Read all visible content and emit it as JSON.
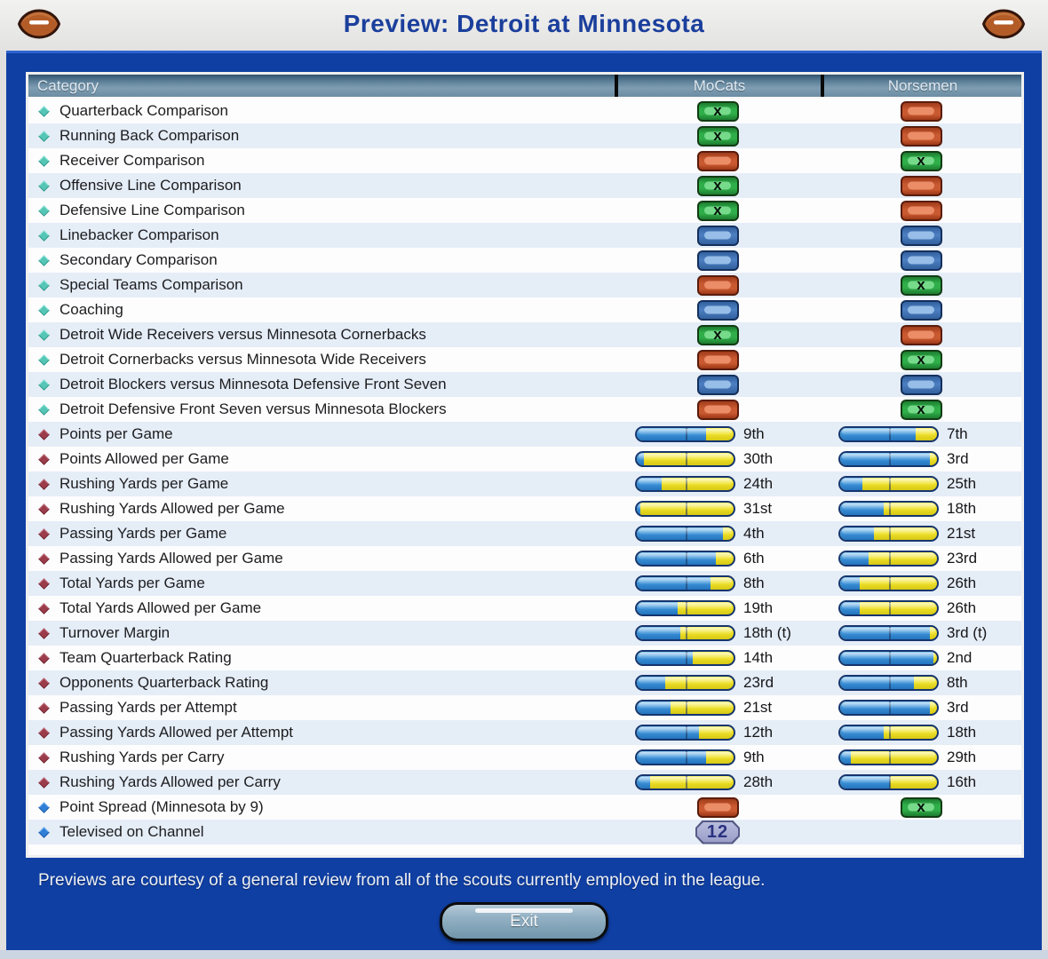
{
  "header": {
    "title": "Preview: Detroit at Minnesota"
  },
  "table": {
    "columns": [
      "Category",
      "MoCats",
      "Norsemen"
    ],
    "rows": [
      {
        "type": "comparison",
        "bullet": "teal",
        "label": "Quarterback Comparison",
        "mocats": "win",
        "norsemen": "loss"
      },
      {
        "type": "comparison",
        "bullet": "teal",
        "label": "Running Back Comparison",
        "mocats": "win",
        "norsemen": "loss"
      },
      {
        "type": "comparison",
        "bullet": "teal",
        "label": "Receiver Comparison",
        "mocats": "loss",
        "norsemen": "win"
      },
      {
        "type": "comparison",
        "bullet": "teal",
        "label": "Offensive Line Comparison",
        "mocats": "win",
        "norsemen": "loss"
      },
      {
        "type": "comparison",
        "bullet": "teal",
        "label": "Defensive Line Comparison",
        "mocats": "win",
        "norsemen": "loss"
      },
      {
        "type": "comparison",
        "bullet": "teal",
        "label": "Linebacker Comparison",
        "mocats": "even",
        "norsemen": "even"
      },
      {
        "type": "comparison",
        "bullet": "teal",
        "label": "Secondary Comparison",
        "mocats": "even",
        "norsemen": "even"
      },
      {
        "type": "comparison",
        "bullet": "teal",
        "label": "Special Teams Comparison",
        "mocats": "loss",
        "norsemen": "win"
      },
      {
        "type": "comparison",
        "bullet": "teal",
        "label": "Coaching",
        "mocats": "even",
        "norsemen": "even"
      },
      {
        "type": "comparison",
        "bullet": "teal",
        "label": "Detroit Wide Receivers versus Minnesota Cornerbacks",
        "mocats": "win",
        "norsemen": "loss"
      },
      {
        "type": "comparison",
        "bullet": "teal",
        "label": "Detroit Cornerbacks versus Minnesota Wide Receivers",
        "mocats": "loss",
        "norsemen": "win"
      },
      {
        "type": "comparison",
        "bullet": "teal",
        "label": "Detroit Blockers versus Minnesota Defensive Front Seven",
        "mocats": "even",
        "norsemen": "even"
      },
      {
        "type": "comparison",
        "bullet": "teal",
        "label": "Detroit Defensive Front Seven versus Minnesota Blockers",
        "mocats": "loss",
        "norsemen": "win"
      },
      {
        "type": "stat",
        "bullet": "maroon",
        "label": "Points per Game",
        "mocats": {
          "rank": "9th",
          "fill": 72
        },
        "norsemen": {
          "rank": "7th",
          "fill": 78
        }
      },
      {
        "type": "stat",
        "bullet": "maroon",
        "label": "Points Allowed per Game",
        "mocats": {
          "rank": "30th",
          "fill": 7
        },
        "norsemen": {
          "rank": "3rd",
          "fill": 93
        }
      },
      {
        "type": "stat",
        "bullet": "maroon",
        "label": "Rushing Yards per Game",
        "mocats": {
          "rank": "24th",
          "fill": 26
        },
        "norsemen": {
          "rank": "25th",
          "fill": 23
        }
      },
      {
        "type": "stat",
        "bullet": "maroon",
        "label": "Rushing Yards Allowed per Game",
        "mocats": {
          "rank": "31st",
          "fill": 4
        },
        "norsemen": {
          "rank": "18th",
          "fill": 45
        }
      },
      {
        "type": "stat",
        "bullet": "maroon",
        "label": "Passing Yards per Game",
        "mocats": {
          "rank": "4th",
          "fill": 89
        },
        "norsemen": {
          "rank": "21st",
          "fill": 35
        }
      },
      {
        "type": "stat",
        "bullet": "maroon",
        "label": "Passing Yards Allowed per Game",
        "mocats": {
          "rank": "6th",
          "fill": 82
        },
        "norsemen": {
          "rank": "23rd",
          "fill": 29
        }
      },
      {
        "type": "stat",
        "bullet": "maroon",
        "label": "Total Yards per Game",
        "mocats": {
          "rank": "8th",
          "fill": 76
        },
        "norsemen": {
          "rank": "26th",
          "fill": 20
        }
      },
      {
        "type": "stat",
        "bullet": "maroon",
        "label": "Total Yards Allowed per Game",
        "mocats": {
          "rank": "19th",
          "fill": 42
        },
        "norsemen": {
          "rank": "26th",
          "fill": 20
        }
      },
      {
        "type": "stat",
        "bullet": "maroon",
        "label": "Turnover Margin",
        "mocats": {
          "rank": "18th (t)",
          "fill": 45
        },
        "norsemen": {
          "rank": "3rd (t)",
          "fill": 93
        }
      },
      {
        "type": "stat",
        "bullet": "maroon",
        "label": "Team Quarterback Rating",
        "mocats": {
          "rank": "14th",
          "fill": 58
        },
        "norsemen": {
          "rank": "2nd",
          "fill": 96
        }
      },
      {
        "type": "stat",
        "bullet": "maroon",
        "label": "Opponents Quarterback Rating",
        "mocats": {
          "rank": "23rd",
          "fill": 29
        },
        "norsemen": {
          "rank": "8th",
          "fill": 76
        }
      },
      {
        "type": "stat",
        "bullet": "maroon",
        "label": "Passing Yards per Attempt",
        "mocats": {
          "rank": "21st",
          "fill": 35
        },
        "norsemen": {
          "rank": "3rd",
          "fill": 93
        }
      },
      {
        "type": "stat",
        "bullet": "maroon",
        "label": "Passing Yards Allowed per Attempt",
        "mocats": {
          "rank": "12th",
          "fill": 64
        },
        "norsemen": {
          "rank": "18th",
          "fill": 45
        }
      },
      {
        "type": "stat",
        "bullet": "maroon",
        "label": "Rushing Yards per Carry",
        "mocats": {
          "rank": "9th",
          "fill": 72
        },
        "norsemen": {
          "rank": "29th",
          "fill": 11
        }
      },
      {
        "type": "stat",
        "bullet": "maroon",
        "label": "Rushing Yards Allowed per Carry",
        "mocats": {
          "rank": "28th",
          "fill": 14
        },
        "norsemen": {
          "rank": "16th",
          "fill": 51
        }
      },
      {
        "type": "comparison",
        "bullet": "blue",
        "label": "Point Spread (Minnesota by 9)",
        "mocats": "loss",
        "norsemen": "win"
      },
      {
        "type": "channel",
        "bullet": "blue",
        "label": "Televised on Channel",
        "mocats": {
          "channel": "12"
        },
        "norsemen": null
      }
    ]
  },
  "footer": {
    "note": "Previews are courtesy of a general review from all of the scouts currently employed in the league.",
    "exit_label": "Exit"
  },
  "icons": {
    "win_mark": "x",
    "left_icon": "football-icon",
    "right_icon": "football-icon"
  },
  "colors": {
    "panel_blue": "#0f3fa3",
    "title_blue": "#1b3f9c",
    "win_green": "#2fae49",
    "loss_red": "#c85930",
    "even_blue": "#4d80c2",
    "bar_blue": "#3d93d9",
    "bar_yellow": "#f0e22a",
    "channel_badge": "#9a9ec8"
  }
}
